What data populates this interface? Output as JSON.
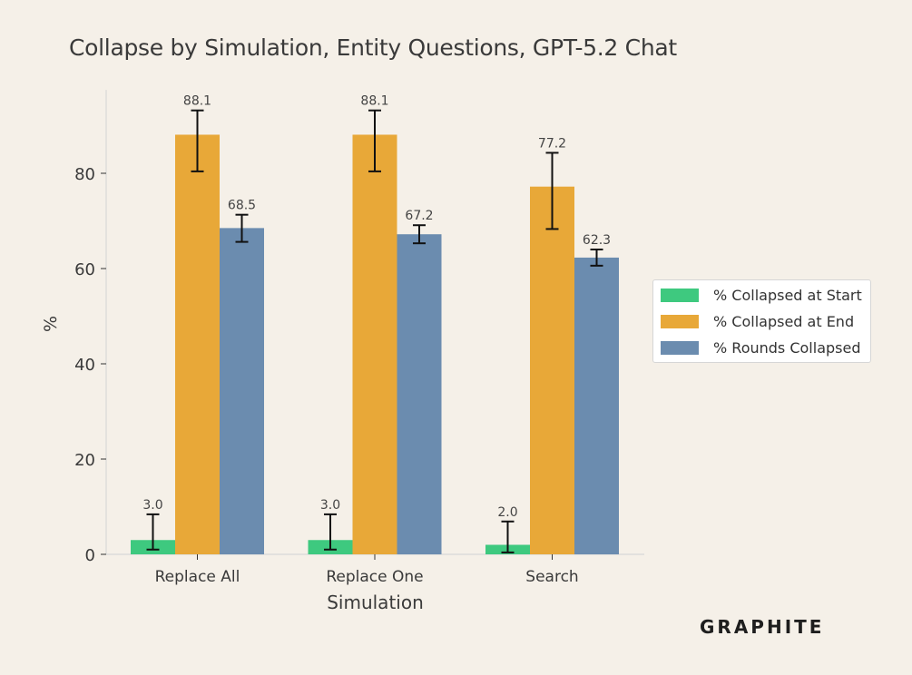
{
  "brand": {
    "name": "GRAPHITE"
  },
  "chart_data": {
    "type": "bar",
    "title": "Collapse by Simulation, Entity Questions, GPT-5.2 Chat",
    "xlabel": "Simulation",
    "ylabel": "%",
    "categories": [
      "Replace All",
      "Replace One",
      "Search"
    ],
    "ylim": [
      0,
      97.5
    ],
    "yticks": [
      0,
      20,
      40,
      60,
      80
    ],
    "grid": false,
    "legend_position": "right",
    "series": [
      {
        "name": "% Collapsed at Start",
        "color": "#3ec97f",
        "values": [
          3.0,
          3.0,
          2.0
        ],
        "labels": [
          "3.0",
          "3.0",
          "2.0"
        ],
        "err_low": [
          1.0,
          1.0,
          0.4
        ],
        "err_high": [
          8.4,
          8.4,
          6.9
        ]
      },
      {
        "name": "% Collapsed at End",
        "color": "#e8a838",
        "values": [
          88.1,
          88.1,
          77.2
        ],
        "labels": [
          "88.1",
          "88.1",
          "77.2"
        ],
        "err_low": [
          80.4,
          80.4,
          68.3
        ],
        "err_high": [
          93.2,
          93.2,
          84.3
        ]
      },
      {
        "name": "% Rounds Collapsed",
        "color": "#6b8caf",
        "values": [
          68.5,
          67.2,
          62.3
        ],
        "labels": [
          "68.5",
          "67.2",
          "62.3"
        ],
        "err_low": [
          65.6,
          65.3,
          60.6
        ],
        "err_high": [
          71.3,
          69.1,
          64.0
        ]
      }
    ]
  }
}
